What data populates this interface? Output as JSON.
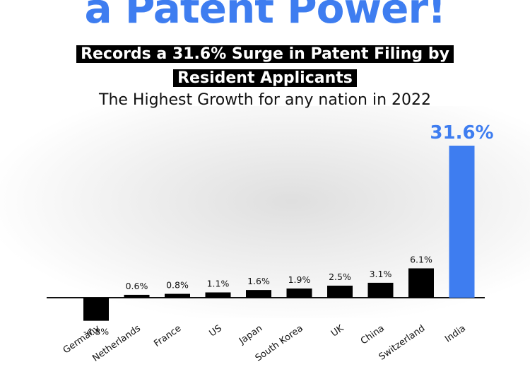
{
  "header": {
    "headline": "a Patent Power!",
    "banner_line1": "Records a 31.6% Surge in Patent Filing by",
    "banner_line2": "Resident Applicants",
    "subline": "The Highest Growth for any nation in 2022"
  },
  "colors": {
    "accent": "#3e7df0",
    "bar_default": "#000000",
    "text": "#111111"
  },
  "chart_data": {
    "type": "bar",
    "categories": [
      "Germany",
      "Netherlands",
      "France",
      "US",
      "Japan",
      "South Korea",
      "UK",
      "China",
      "Switzerland",
      "India"
    ],
    "values": [
      -4.8,
      0.6,
      0.8,
      1.1,
      1.6,
      1.9,
      2.5,
      3.1,
      6.1,
      31.6
    ],
    "labels": [
      "-4.8%",
      "0.6%",
      "0.8%",
      "1.1%",
      "1.6%",
      "1.9%",
      "2.5%",
      "3.1%",
      "6.1%",
      "31.6%"
    ],
    "highlight_index": 9,
    "ylim": [
      -6.4,
      31.6
    ],
    "grid": false,
    "legend": "none"
  }
}
